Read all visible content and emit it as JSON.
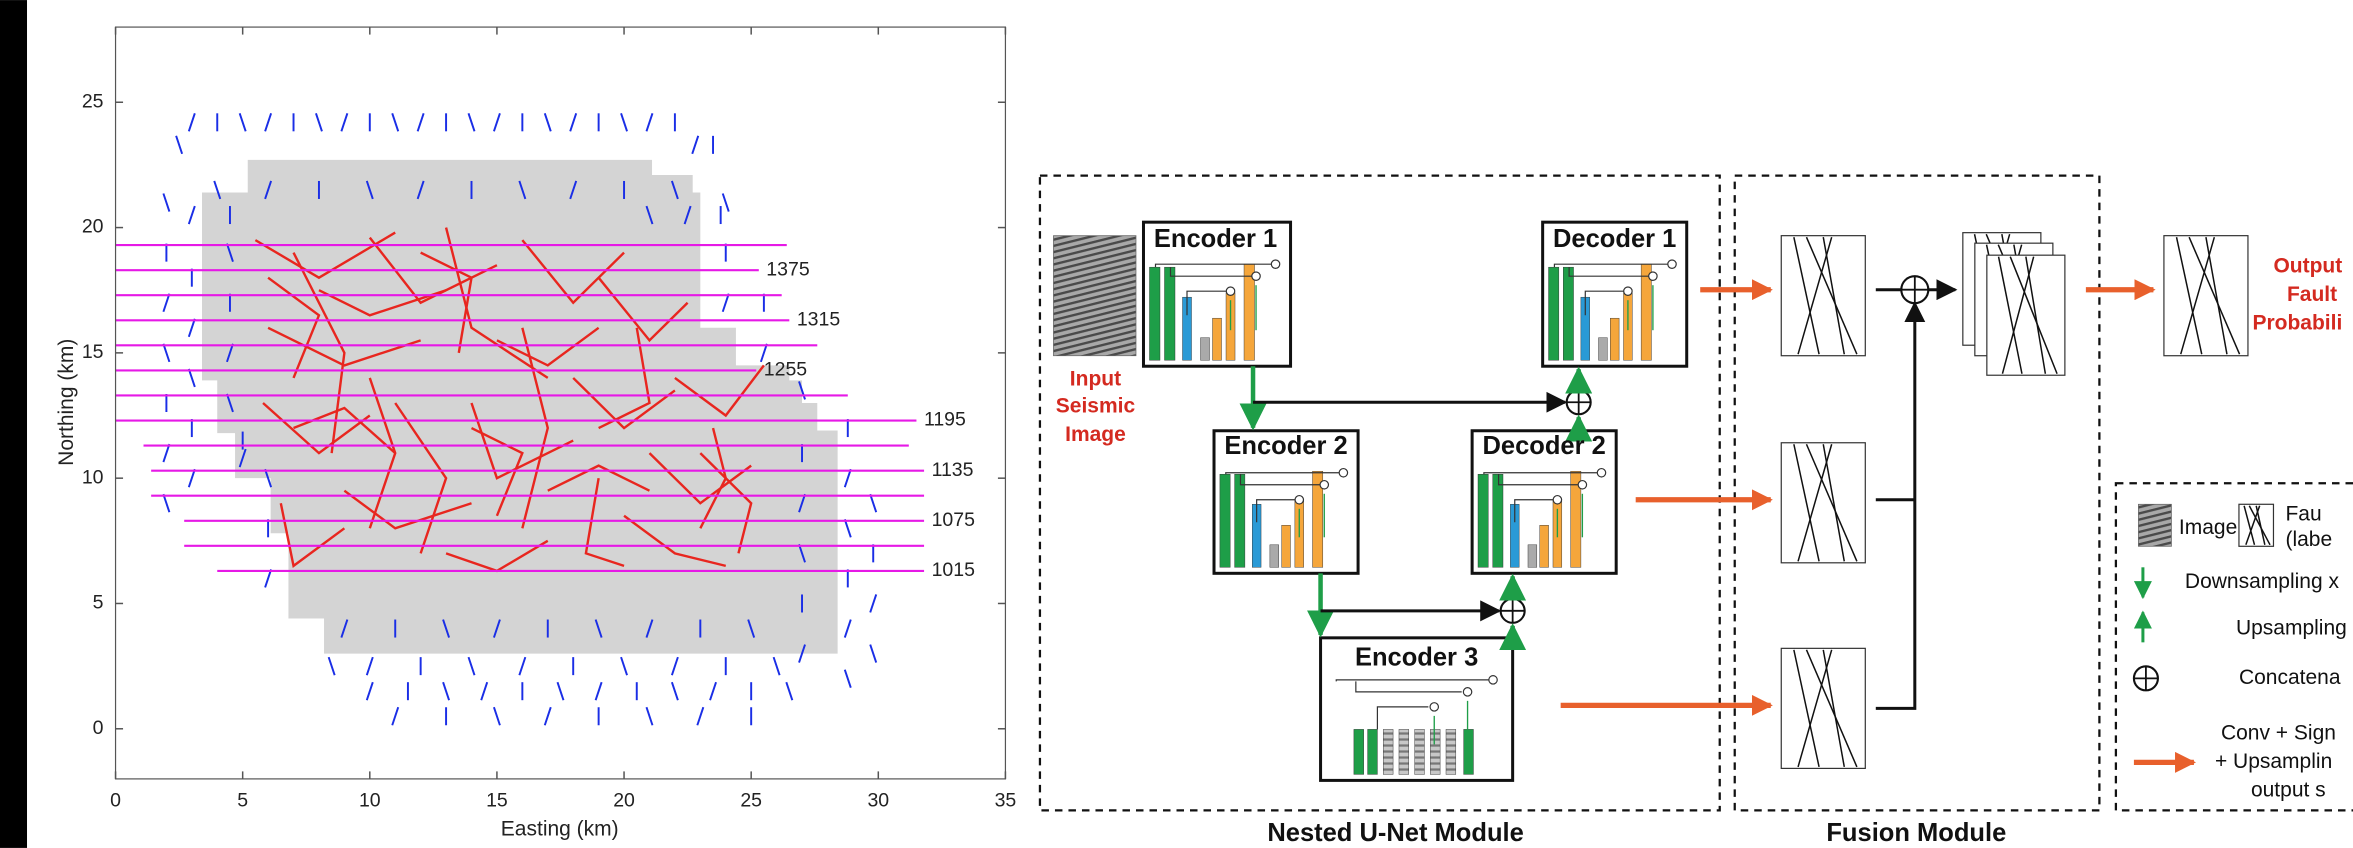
{
  "chart_data": {
    "type": "map",
    "x_label": "Easting (km)",
    "y_label": "Northing (km)",
    "xlim": [
      0,
      35
    ],
    "ylim": [
      -2,
      28
    ],
    "xticks": [
      0,
      5,
      10,
      15,
      20,
      25,
      30,
      35
    ],
    "yticks": [
      0,
      5,
      10,
      15,
      20,
      25
    ],
    "survey_area": {
      "color": "#d4d4d4",
      "x": [
        3.4,
        5.2,
        5.2,
        21.1,
        21.1,
        22.7,
        22.7,
        23.0,
        23.0,
        24.4,
        24.4,
        26.5,
        26.5,
        27.0,
        27.0,
        27.6,
        27.6,
        28.4,
        28.4,
        8.2,
        8.2,
        6.8,
        6.8,
        6.1,
        6.1,
        4.7,
        4.7,
        4.0,
        4.0,
        3.4
      ],
      "y": [
        21.4,
        21.4,
        22.7,
        22.7,
        22.1,
        22.1,
        21.4,
        21.4,
        16.0,
        16.0,
        14.5,
        14.5,
        13.9,
        13.9,
        13.0,
        13.0,
        11.9,
        11.9,
        3.0,
        3.0,
        4.4,
        4.4,
        7.8,
        7.8,
        10.0,
        10.0,
        11.8,
        11.8,
        13.9,
        13.9
      ]
    },
    "stations": {
      "color": "#1a2ee6",
      "x": [
        3,
        4,
        5,
        6,
        7,
        8,
        9,
        10,
        11,
        12,
        13,
        14,
        15,
        16,
        17,
        18,
        19,
        20,
        21,
        22,
        2.5,
        22.8,
        23.5,
        4,
        6,
        8,
        10,
        12,
        14,
        16,
        18,
        20,
        22,
        3,
        4.5,
        21,
        22.5,
        23.8,
        2,
        2,
        2,
        2,
        2,
        2,
        2,
        3,
        3,
        3,
        3,
        3,
        4.5,
        4.5,
        4.5,
        4.5,
        24,
        24,
        24,
        25.5,
        25.5,
        27,
        27,
        27,
        27,
        27,
        27,
        28.8,
        28.8,
        28.8,
        28.8,
        28.8,
        28.8,
        29.8,
        29.8,
        29.8,
        29.8,
        10,
        11.5,
        13,
        14.5,
        16,
        17.5,
        19,
        20.5,
        22,
        23.5,
        25,
        26.5,
        11,
        13,
        15,
        17,
        19,
        21,
        23,
        25,
        8.5,
        10,
        12,
        14,
        16,
        18,
        20,
        22,
        24,
        26,
        9,
        11,
        13,
        15,
        17,
        19,
        21,
        23,
        25,
        6,
        6,
        6,
        5,
        5
      ],
      "y": [
        24.2,
        24.2,
        24.2,
        24.2,
        24.2,
        24.2,
        24.2,
        24.2,
        24.2,
        24.2,
        24.2,
        24.2,
        24.2,
        24.2,
        24.2,
        24.2,
        24.2,
        24.2,
        24.2,
        24.2,
        23.3,
        23.3,
        23.3,
        21.5,
        21.5,
        21.5,
        21.5,
        21.5,
        21.5,
        21.5,
        21.5,
        21.5,
        21.5,
        20.5,
        20.5,
        20.5,
        20.5,
        20.5,
        9,
        11,
        13,
        15,
        17,
        19,
        21,
        10,
        12,
        14,
        16,
        18,
        13,
        15,
        17,
        19,
        17,
        19,
        21,
        15,
        17,
        13.5,
        3,
        5,
        7,
        9,
        11,
        2,
        4,
        6,
        8,
        10,
        12,
        3,
        5,
        7,
        9,
        1.5,
        1.5,
        1.5,
        1.5,
        1.5,
        1.5,
        1.5,
        1.5,
        1.5,
        1.5,
        1.5,
        1.5,
        0.5,
        0.5,
        0.5,
        0.5,
        0.5,
        0.5,
        0.5,
        0.5,
        2.5,
        2.5,
        2.5,
        2.5,
        2.5,
        2.5,
        2.5,
        2.5,
        2.5,
        2.5,
        4,
        4,
        4,
        4,
        4,
        4,
        4,
        4,
        4,
        6,
        8,
        10,
        10.8,
        11.5
      ]
    },
    "faults": {
      "color": "#e8261f",
      "lines": [
        {
          "x": [
            5.5,
            8,
            11
          ],
          "y": [
            19.5,
            18,
            19.8
          ]
        },
        {
          "x": [
            7,
            9,
            8.5
          ],
          "y": [
            19,
            15,
            11
          ]
        },
        {
          "x": [
            10,
            12,
            15
          ],
          "y": [
            19.6,
            17,
            18.5
          ]
        },
        {
          "x": [
            13,
            14,
            17
          ],
          "y": [
            20,
            16,
            14
          ]
        },
        {
          "x": [
            16,
            18,
            20
          ],
          "y": [
            19.5,
            17,
            19
          ]
        },
        {
          "x": [
            19,
            21,
            22.5
          ],
          "y": [
            18,
            15.5,
            17
          ]
        },
        {
          "x": [
            6,
            9,
            12
          ],
          "y": [
            16,
            14.5,
            15.5
          ]
        },
        {
          "x": [
            11,
            13,
            12
          ],
          "y": [
            13,
            10,
            7
          ]
        },
        {
          "x": [
            5.8,
            8,
            10
          ],
          "y": [
            13,
            11,
            12.5
          ]
        },
        {
          "x": [
            6.5,
            7,
            9
          ],
          "y": [
            9,
            6.5,
            8
          ]
        },
        {
          "x": [
            9,
            11,
            14
          ],
          "y": [
            9.5,
            8,
            9
          ]
        },
        {
          "x": [
            14,
            15,
            18
          ],
          "y": [
            13,
            10,
            11.5
          ]
        },
        {
          "x": [
            16,
            17,
            16
          ],
          "y": [
            16,
            12,
            8
          ]
        },
        {
          "x": [
            18,
            20,
            22
          ],
          "y": [
            14,
            12,
            13.5
          ]
        },
        {
          "x": [
            19,
            18.5,
            20
          ],
          "y": [
            10,
            7,
            6.5
          ]
        },
        {
          "x": [
            21,
            23,
            25
          ],
          "y": [
            11,
            9,
            10.5
          ]
        },
        {
          "x": [
            22,
            24,
            25.5
          ],
          "y": [
            14,
            12.5,
            14.5
          ]
        },
        {
          "x": [
            20,
            22,
            24
          ],
          "y": [
            8.5,
            7,
            6.5
          ]
        },
        {
          "x": [
            13,
            15,
            17
          ],
          "y": [
            7,
            6.3,
            7.5
          ]
        },
        {
          "x": [
            8,
            10,
            13
          ],
          "y": [
            17.5,
            16.5,
            17.5
          ]
        },
        {
          "x": [
            15,
            17,
            19
          ],
          "y": [
            15.5,
            14.5,
            16
          ]
        },
        {
          "x": [
            10,
            11,
            10
          ],
          "y": [
            14,
            11,
            8
          ]
        },
        {
          "x": [
            6,
            8,
            7
          ],
          "y": [
            18,
            16.5,
            14
          ]
        },
        {
          "x": [
            23,
            24,
            23.5
          ],
          "y": [
            8,
            10,
            12
          ]
        },
        {
          "x": [
            17,
            19,
            21
          ],
          "y": [
            9.5,
            10.5,
            9.5
          ]
        },
        {
          "x": [
            12,
            14,
            13.5
          ],
          "y": [
            19,
            18,
            15
          ]
        },
        {
          "x": [
            24.5,
            25,
            23
          ],
          "y": [
            7,
            9,
            11
          ]
        },
        {
          "x": [
            7,
            9,
            11
          ],
          "y": [
            12,
            12.8,
            11
          ]
        },
        {
          "x": [
            14,
            16,
            15
          ],
          "y": [
            12,
            11,
            8.5
          ]
        },
        {
          "x": [
            20.5,
            21,
            19
          ],
          "y": [
            16,
            13,
            12
          ]
        }
      ]
    },
    "inlines": {
      "color": "#e619e6",
      "lines": [
        {
          "y": 19.3,
          "x": [
            0,
            26.4
          ]
        },
        {
          "y": 18.3,
          "x": [
            0,
            25.3
          ],
          "label": "1375"
        },
        {
          "y": 17.3,
          "x": [
            0,
            26.2
          ]
        },
        {
          "y": 16.3,
          "x": [
            0,
            26.5
          ],
          "label": "1315"
        },
        {
          "y": 15.3,
          "x": [
            0,
            27.6
          ]
        },
        {
          "y": 14.3,
          "x": [
            0,
            25.2
          ],
          "label": "1255"
        },
        {
          "y": 13.3,
          "x": [
            0,
            28.8
          ]
        },
        {
          "y": 12.3,
          "x": [
            0,
            31.5
          ],
          "label": "1195"
        },
        {
          "y": 11.3,
          "x": [
            1.1,
            31.2
          ]
        },
        {
          "y": 10.3,
          "x": [
            1.4,
            31.8
          ],
          "label": "1135"
        },
        {
          "y": 9.3,
          "x": [
            1.4,
            31.8
          ]
        },
        {
          "y": 8.3,
          "x": [
            2.7,
            31.8
          ],
          "label": "1075"
        },
        {
          "y": 7.3,
          "x": [
            2.7,
            31.8
          ]
        },
        {
          "y": 6.3,
          "x": [
            4.0,
            31.8
          ],
          "label": "1015"
        }
      ]
    }
  },
  "diagram": {
    "blocks": [
      "Encoder 1",
      "Encoder 2",
      "Encoder 3",
      "Decoder 1",
      "Decoder 2"
    ],
    "input_label": [
      "Input",
      "Seismic",
      "Image"
    ],
    "output_label": [
      "Output",
      "Fault",
      "Probabili"
    ],
    "modules": [
      "Nested U-Net Module",
      "Fusion Module"
    ],
    "legend": [
      "Image",
      "Fau",
      "(labe",
      "Downsampling x",
      "Upsampling",
      "Concatena",
      "Conv + Sign",
      "+ Upsamplin",
      "output s"
    ]
  }
}
